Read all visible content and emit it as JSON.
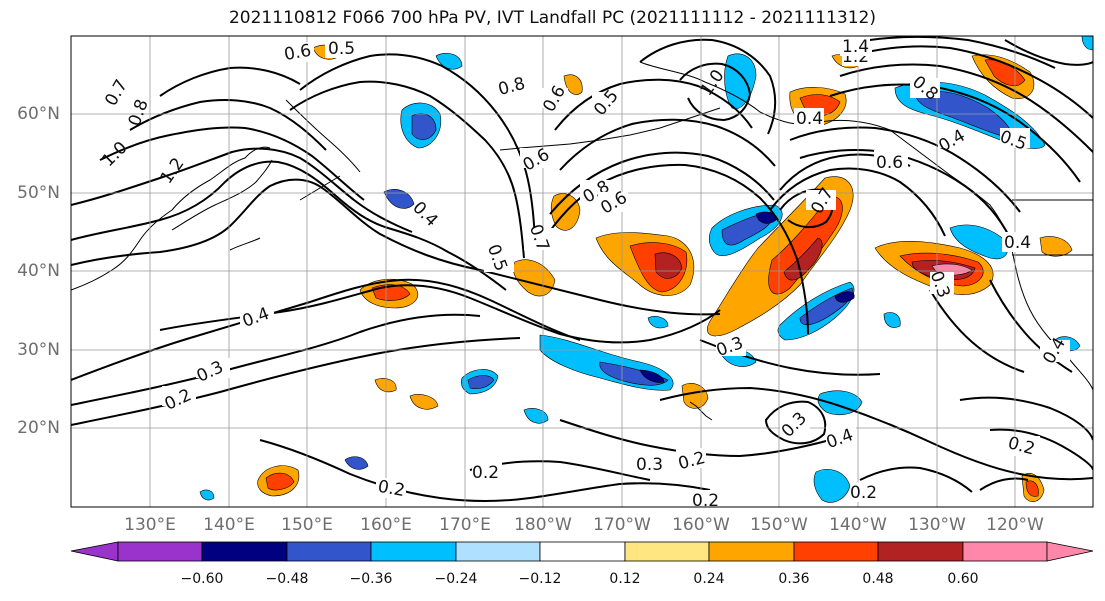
{
  "title": "2021110812 F066 700 hPa PV, IVT Landfall PC (2021111112 - 2021111312)",
  "map": {
    "lat_labels": [
      "60°N",
      "50°N",
      "40°N",
      "30°N",
      "20°N"
    ],
    "lon_labels": [
      "130°E",
      "140°E",
      "150°E",
      "160°E",
      "170°E",
      "180°W",
      "170°W",
      "160°W",
      "150°W",
      "140°W",
      "130°W",
      "120°W"
    ],
    "contour_labels": [
      "0.6",
      "0.5",
      "0.8",
      "0.6",
      "0.5",
      "1.0",
      "0.7",
      "0.8",
      "1.0",
      "1.2",
      "0.4",
      "0.6",
      "0.8",
      "0.6",
      "0.7",
      "0.5",
      "0.4",
      "0.3",
      "0.2",
      "0.7",
      "0.3",
      "0.3",
      "0.4",
      "0.2",
      "0.3",
      "0.2",
      "0.2",
      "0.2",
      "0.2",
      "0.2",
      "0.4",
      "0.4",
      "0.5",
      "0.6",
      "0.8",
      "1.2",
      "1.4",
      "0.4",
      "0.4",
      "0.3"
    ]
  },
  "colorbar": {
    "tick_labels": [
      "−0.60",
      "−0.48",
      "−0.36",
      "−0.24",
      "−0.12",
      "0.12",
      "0.24",
      "0.36",
      "0.48",
      "0.60"
    ],
    "colors": [
      "#9933cc",
      "#000080",
      "#3355cc",
      "#00bfff",
      "#b0e0ff",
      "#ffffff",
      "#ffe680",
      "#ffa500",
      "#ff4000",
      "#b22222",
      "#ff88aa"
    ]
  }
}
